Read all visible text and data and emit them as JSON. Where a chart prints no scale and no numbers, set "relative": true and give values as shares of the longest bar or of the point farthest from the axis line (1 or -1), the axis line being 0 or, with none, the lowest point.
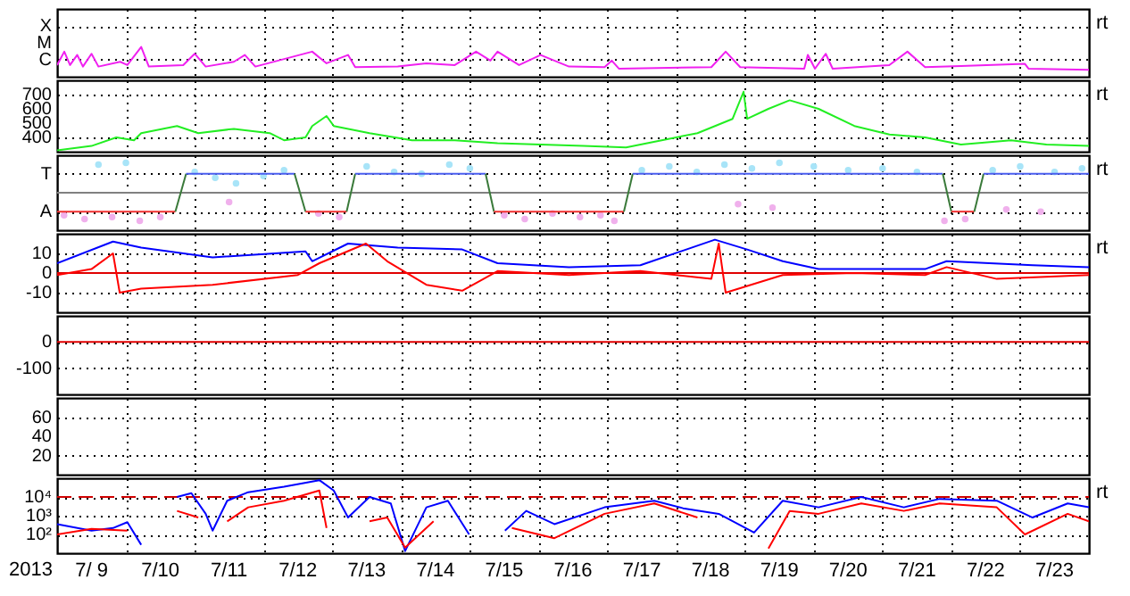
{
  "chart_data": [
    {
      "type": "line",
      "xlim": [
        "2013-07-09",
        "2013-07-24"
      ],
      "relative": true,
      "grid": true,
      "tick_labels": "y",
      "annotations": [
        "X",
        "M",
        "C",
        "rt"
      ],
      "xticks": [
        {
          "value": "2013-07-10",
          "label": null
        },
        {
          "value": "2013-07-11",
          "label": null
        },
        {
          "value": "2013-07-12",
          "label": null
        },
        {
          "value": "2013-07-13",
          "label": null
        },
        {
          "value": "2013-07-14",
          "label": null
        },
        {
          "value": "2013-07-15",
          "label": null
        },
        {
          "value": "2013-07-16",
          "label": null
        },
        {
          "value": "2013-07-17",
          "label": null
        },
        {
          "value": "2013-07-18",
          "label": null
        },
        {
          "value": "2013-07-19",
          "label": null
        },
        {
          "value": "2013-07-20",
          "label": null
        },
        {
          "value": "2013-07-21",
          "label": null
        },
        {
          "value": "2013-07-22",
          "label": null
        },
        {
          "value": "2013-07-23",
          "label": null
        }
      ],
      "series": [
        {
          "color": "#f020f0",
          "x": [
            "2013-07-09T00:00",
            "2013-07-09T02:30",
            "2013-07-09T04:30",
            "2013-07-09T07:00",
            "2013-07-09T09:00",
            "2013-07-09T12:00",
            "2013-07-09T14:25",
            "2013-07-09T22:00",
            "2013-07-10T00:30",
            "2013-07-10T05:20",
            "2013-07-10T08:00",
            "2013-07-10T20:00",
            "2013-07-11T00:00",
            "2013-07-11T03:50",
            "2013-07-11T13:40",
            "2013-07-11T17:30",
            "2013-07-11T21:10",
            "2013-07-12T17:00",
            "2013-07-12T22:00",
            "2013-07-13T05:30",
            "2013-07-13T08:00",
            "2013-07-13T22:50",
            "2013-07-14T08:50",
            "2013-07-14T18:45",
            "2013-07-15T02:10",
            "2013-07-15T07:10",
            "2013-07-15T09:40",
            "2013-07-15T17:10",
            "2013-07-16T00:40",
            "2013-07-16T10:35",
            "2013-07-16T23:00",
            "2013-07-17T01:30",
            "2013-07-17T04:00",
            "2013-07-18T12:15",
            "2013-07-18T17:15",
            "2013-07-18T22:20",
            "2013-07-19T20:40",
            "2013-07-19T21:55",
            "2013-07-20T00:25",
            "2013-07-20T04:10",
            "2013-07-20T06:35",
            "2013-07-21T02:20",
            "2013-07-21T08:40",
            "2013-07-21T14:50",
            "2013-07-22T03:20",
            "2013-07-23T01:40",
            "2013-07-23T02:55",
            "2013-07-24T00:00"
          ],
          "values": [
            0.39,
            0.84,
            0.39,
            0.73,
            0.34,
            0.77,
            0.34,
            0.5,
            0.39,
            1,
            0.34,
            0.39,
            0.77,
            0.34,
            0.5,
            0.73,
            0.34,
            0.84,
            0.45,
            0.73,
            0.32,
            0.34,
            0.45,
            0.39,
            0.84,
            0.54,
            0.84,
            0.39,
            0.73,
            0.34,
            0.32,
            0.54,
            0.27,
            0.32,
            0.84,
            0.32,
            0.27,
            0.73,
            0.27,
            0.77,
            0.27,
            0.39,
            0.84,
            0.32,
            0.36,
            0.43,
            0.27,
            0.23
          ]
        }
      ]
    },
    {
      "type": "line",
      "xlim": [
        "2013-07-09",
        "2013-07-24"
      ],
      "ylim": [
        300,
        800
      ],
      "yticks": [
        400,
        500,
        600,
        700
      ],
      "grid": true,
      "tick_labels": "y",
      "annotations": [
        "rt"
      ],
      "xticks": [
        {
          "value": "2013-07-10",
          "label": null
        },
        {
          "value": "2013-07-11",
          "label": null
        },
        {
          "value": "2013-07-12",
          "label": null
        },
        {
          "value": "2013-07-13",
          "label": null
        },
        {
          "value": "2013-07-14",
          "label": null
        },
        {
          "value": "2013-07-15",
          "label": null
        },
        {
          "value": "2013-07-16",
          "label": null
        },
        {
          "value": "2013-07-17",
          "label": null
        },
        {
          "value": "2013-07-18",
          "label": null
        },
        {
          "value": "2013-07-19",
          "label": null
        },
        {
          "value": "2013-07-20",
          "label": null
        },
        {
          "value": "2013-07-21",
          "label": null
        },
        {
          "value": "2013-07-22",
          "label": null
        },
        {
          "value": "2013-07-23",
          "label": null
        }
      ],
      "series": [
        {
          "color": "#22ee22",
          "x": [
            "2013-07-09T00:00",
            "2013-07-09T12:00",
            "2013-07-09T20:40",
            "2013-07-10T02:50",
            "2013-07-10T05:20",
            "2013-07-10T17:50",
            "2013-07-11T01:15",
            "2013-07-11T13:40",
            "2013-07-12T02:10",
            "2013-07-12T07:10",
            "2013-07-12T14:40",
            "2013-07-12T17:00",
            "2013-07-12T22:00",
            "2013-07-13T00:30",
            "2013-07-13T13:00",
            "2013-07-14T03:50",
            "2013-07-14T18:45",
            "2013-07-15T09:40",
            "2013-07-16T00:40",
            "2013-07-16T15:35",
            "2013-07-17T06:30",
            "2013-07-17T18:55",
            "2013-07-18T07:25",
            "2013-07-18T19:40",
            "2013-07-18T23:30",
            "2013-07-19T00:45",
            "2013-07-19T08:10",
            "2013-07-19T15:35",
            "2013-07-20T01:40",
            "2013-07-20T14:10",
            "2013-07-21T02:25",
            "2013-07-21T14:50",
            "2013-07-22T03:20",
            "2013-07-22T20:50",
            "2013-07-23T09:10",
            "2013-07-24T00:00"
          ],
          "values": [
            310,
            340,
            400,
            380,
            430,
            480,
            430,
            460,
            430,
            380,
            400,
            480,
            550,
            480,
            430,
            380,
            380,
            360,
            350,
            340,
            330,
            380,
            430,
            530,
            720,
            530,
            600,
            660,
            600,
            480,
            420,
            400,
            350,
            380,
            350,
            340
          ]
        }
      ]
    },
    {
      "type": "line",
      "xlim": [
        "2013-07-09",
        "2013-07-24"
      ],
      "relative": true,
      "grid": true,
      "tick_labels": "y",
      "annotations": [
        "T",
        "A",
        "rt"
      ],
      "xticks": [
        {
          "value": "2013-07-10",
          "label": null
        },
        {
          "value": "2013-07-11",
          "label": null
        },
        {
          "value": "2013-07-12",
          "label": null
        },
        {
          "value": "2013-07-13",
          "label": null
        },
        {
          "value": "2013-07-14",
          "label": null
        },
        {
          "value": "2013-07-15",
          "label": null
        },
        {
          "value": "2013-07-16",
          "label": null
        },
        {
          "value": "2013-07-17",
          "label": null
        },
        {
          "value": "2013-07-18",
          "label": null
        },
        {
          "value": "2013-07-19",
          "label": null
        },
        {
          "value": "2013-07-20",
          "label": null
        },
        {
          "value": "2013-07-21",
          "label": null
        },
        {
          "value": "2013-07-22",
          "label": null
        },
        {
          "value": "2013-07-23",
          "label": null
        }
      ],
      "ref_lines": [
        {
          "axis": "y",
          "value": 0,
          "color": "#808080"
        }
      ],
      "series": [
        {
          "type": "scatter",
          "color": "#a8e4f8",
          "x": [
            "2013-07-09T14:25",
            "2013-07-10T00:00",
            "2013-07-11T00:00",
            "2013-07-11T07:10",
            "2013-07-11T14:25",
            "2013-07-12T00:00",
            "2013-07-12T07:10",
            "2013-07-13T12:00",
            "2013-07-13T21:35",
            "2013-07-14T07:10",
            "2013-07-14T16:50",
            "2013-07-15T00:00",
            "2013-07-17T12:00",
            "2013-07-17T21:35",
            "2013-07-18T07:10",
            "2013-07-18T16:50",
            "2013-07-19T02:25",
            "2013-07-19T12:00",
            "2013-07-20T00:00",
            "2013-07-20T12:00",
            "2013-07-21T00:00",
            "2013-07-21T12:00",
            "2013-07-22T14:25",
            "2013-07-23T00:00",
            "2013-07-23T12:00",
            "2013-07-23T21:35"
          ],
          "values": [
            0.94,
            1,
            0.69,
            0.5,
            0.31,
            0.56,
            0.75,
            0.88,
            0.69,
            0.63,
            0.94,
            0.81,
            0.75,
            0.88,
            0.69,
            0.94,
            0.81,
            1,
            0.88,
            0.75,
            0.81,
            0.69,
            0.75,
            0.88,
            0.69,
            0.81
          ]
        },
        {
          "type": "scatter",
          "color": "#f0b0ec",
          "x": [
            "2013-07-09T02:25",
            "2013-07-09T09:35",
            "2013-07-09T19:10",
            "2013-07-10T04:50",
            "2013-07-10T12:00",
            "2013-07-11T12:00",
            "2013-07-12T19:10",
            "2013-07-13T02:25",
            "2013-07-15T12:00",
            "2013-07-15T19:10",
            "2013-07-16T04:50",
            "2013-07-16T14:25",
            "2013-07-16T21:35",
            "2013-07-17T02:25",
            "2013-07-18T21:35",
            "2013-07-19T09:35",
            "2013-07-21T21:35",
            "2013-07-22T04:50",
            "2013-07-22T19:10",
            "2013-07-23T07:10"
          ],
          "values": [
            -0.75,
            -0.88,
            -0.81,
            -0.94,
            -0.81,
            -0.31,
            -0.69,
            -0.81,
            -0.75,
            -0.88,
            -0.69,
            -0.81,
            -0.75,
            -0.94,
            -0.38,
            -0.5,
            -0.94,
            -0.88,
            -0.56,
            -0.63
          ]
        },
        {
          "color": "#f03030",
          "x": [
            "2013-07-09",
            "2013-07-10T17:15"
          ],
          "values": [
            -0.63,
            -0.63
          ]
        },
        {
          "color": "#3a7a3a",
          "x": [
            "2013-07-10T17:15",
            "2013-07-10T21:00"
          ],
          "values": [
            -0.63,
            0.63
          ]
        },
        {
          "color": "#4a5ef0",
          "x": [
            "2013-07-10T21:00",
            "2013-07-12T10:50"
          ],
          "values": [
            0.63,
            0.63
          ]
        },
        {
          "color": "#3a7a3a",
          "x": [
            "2013-07-12T10:50",
            "2013-07-12T14:40"
          ],
          "values": [
            0.63,
            -0.63
          ]
        },
        {
          "color": "#f03030",
          "x": [
            "2013-07-12T14:40",
            "2013-07-13T05:00"
          ],
          "values": [
            -0.63,
            -0.63
          ]
        },
        {
          "color": "#3a7a3a",
          "x": [
            "2013-07-13T05:00",
            "2013-07-13T08:00"
          ],
          "values": [
            -0.63,
            0.63
          ]
        },
        {
          "color": "#4a5ef0",
          "x": [
            "2013-07-13T08:00",
            "2013-07-15T05:30"
          ],
          "values": [
            0.63,
            0.63
          ]
        },
        {
          "color": "#3a7a3a",
          "x": [
            "2013-07-15T05:30",
            "2013-07-15T08:25"
          ],
          "values": [
            0.63,
            -0.63
          ]
        },
        {
          "color": "#f03030",
          "x": [
            "2013-07-15T08:25",
            "2013-07-17T05:45"
          ],
          "values": [
            -0.63,
            -0.63
          ]
        },
        {
          "color": "#3a7a3a",
          "x": [
            "2013-07-17T05:45",
            "2013-07-17T08:50"
          ],
          "values": [
            -0.63,
            0.63
          ]
        },
        {
          "color": "#4a5ef0",
          "x": [
            "2013-07-17T08:50",
            "2013-07-21T21:00"
          ],
          "values": [
            0.63,
            0.63
          ]
        },
        {
          "color": "#3a7a3a",
          "x": [
            "2013-07-21T21:00",
            "2013-07-22T00:00"
          ],
          "values": [
            0.63,
            -0.63
          ]
        },
        {
          "color": "#f03030",
          "x": [
            "2013-07-22T00:00",
            "2013-07-22T08:00"
          ],
          "values": [
            -0.63,
            -0.63
          ]
        },
        {
          "color": "#3a7a3a",
          "x": [
            "2013-07-22T08:00",
            "2013-07-22T11:15"
          ],
          "values": [
            -0.63,
            0.63
          ]
        },
        {
          "color": "#4a5ef0",
          "x": [
            "2013-07-22T11:15",
            "2013-07-24"
          ],
          "values": [
            0.63,
            0.63
          ]
        }
      ]
    },
    {
      "type": "line",
      "xlim": [
        "2013-07-09",
        "2013-07-24"
      ],
      "ylim": [
        -20,
        20
      ],
      "yticks": [
        10,
        0,
        -10
      ],
      "grid": true,
      "tick_labels": "y",
      "annotations": [
        "rt"
      ],
      "xticks": [
        {
          "value": "2013-07-10",
          "label": null
        },
        {
          "value": "2013-07-11",
          "label": null
        },
        {
          "value": "2013-07-12",
          "label": null
        },
        {
          "value": "2013-07-13",
          "label": null
        },
        {
          "value": "2013-07-14",
          "label": null
        },
        {
          "value": "2013-07-15",
          "label": null
        },
        {
          "value": "2013-07-16",
          "label": null
        },
        {
          "value": "2013-07-17",
          "label": null
        },
        {
          "value": "2013-07-18",
          "label": null
        },
        {
          "value": "2013-07-19",
          "label": null
        },
        {
          "value": "2013-07-20",
          "label": null
        },
        {
          "value": "2013-07-21",
          "label": null
        },
        {
          "value": "2013-07-22",
          "label": null
        },
        {
          "value": "2013-07-23",
          "label": null
        }
      ],
      "ref_lines": [
        {
          "axis": "y",
          "value": 0,
          "color": "#e00000"
        }
      ],
      "series": [
        {
          "color": "#0000ff",
          "x": [
            "2013-07-09T00:00",
            "2013-07-09T19:30",
            "2013-07-10T05:20",
            "2013-07-11T06:15",
            "2013-07-12T14:40",
            "2013-07-12T17:00",
            "2013-07-13T05:30",
            "2013-07-13T22:50",
            "2013-07-14T21:20",
            "2013-07-15T09:40",
            "2013-07-16T10:35",
            "2013-07-17T11:30",
            "2013-07-18T13:30",
            "2013-07-19T00:45",
            "2013-07-19T13:10",
            "2013-07-20T01:40",
            "2013-07-21T14:50",
            "2013-07-21T22:20",
            "2013-07-23T04:20",
            "2013-07-24T00:00"
          ],
          "values": [
            5,
            16,
            13,
            8,
            11,
            6,
            15,
            13,
            12,
            5,
            3,
            4,
            17,
            12,
            6,
            2,
            2,
            6,
            4,
            3
          ]
        },
        {
          "color": "#ff0000",
          "x": [
            "2013-07-09T00:00",
            "2013-07-09T12:00",
            "2013-07-09T19:30",
            "2013-07-09T21:50",
            "2013-07-10T05:20",
            "2013-07-11T06:15",
            "2013-07-12T12:00",
            "2013-07-12T19:30",
            "2013-07-13T11:45",
            "2013-07-13T19:10",
            "2013-07-14T08:50",
            "2013-07-14T21:20",
            "2013-07-15T09:40",
            "2013-07-16T10:35",
            "2013-07-17T11:30",
            "2013-07-18T12:15",
            "2013-07-18T14:50",
            "2013-07-18T17:15",
            "2013-07-19T13:10",
            "2013-07-20T14:10",
            "2013-07-21T14:50",
            "2013-07-21T22:20",
            "2013-07-22T15:50",
            "2013-07-24T00:00"
          ],
          "values": [
            -1,
            2,
            10,
            -10,
            -8,
            -6,
            -1,
            5,
            15,
            6,
            -6,
            -9,
            1,
            -1,
            1,
            -3,
            15,
            -10,
            -1,
            0,
            -1,
            3,
            -3,
            -1
          ]
        }
      ]
    },
    {
      "type": "line",
      "xlim": [
        "2013-07-09",
        "2013-07-24"
      ],
      "ylim": [
        -200,
        100
      ],
      "yticks": [
        0,
        -100
      ],
      "grid": true,
      "tick_labels": "y",
      "xticks": [
        {
          "value": "2013-07-10",
          "label": null
        },
        {
          "value": "2013-07-11",
          "label": null
        },
        {
          "value": "2013-07-12",
          "label": null
        },
        {
          "value": "2013-07-13",
          "label": null
        },
        {
          "value": "2013-07-14",
          "label": null
        },
        {
          "value": "2013-07-15",
          "label": null
        },
        {
          "value": "2013-07-16",
          "label": null
        },
        {
          "value": "2013-07-17",
          "label": null
        },
        {
          "value": "2013-07-18",
          "label": null
        },
        {
          "value": "2013-07-19",
          "label": null
        },
        {
          "value": "2013-07-20",
          "label": null
        },
        {
          "value": "2013-07-21",
          "label": null
        },
        {
          "value": "2013-07-22",
          "label": null
        },
        {
          "value": "2013-07-23",
          "label": null
        }
      ],
      "ref_lines": [
        {
          "axis": "y",
          "value": 0,
          "color": "#e00000"
        }
      ]
    },
    {
      "type": "line",
      "xlim": [
        "2013-07-09",
        "2013-07-24"
      ],
      "ylim": [
        0,
        80
      ],
      "yticks": [
        60,
        40,
        20
      ],
      "grid": true,
      "tick_labels": "y",
      "xticks": [
        {
          "value": "2013-07-10",
          "label": null
        },
        {
          "value": "2013-07-11",
          "label": null
        },
        {
          "value": "2013-07-12",
          "label": null
        },
        {
          "value": "2013-07-13",
          "label": null
        },
        {
          "value": "2013-07-14",
          "label": null
        },
        {
          "value": "2013-07-15",
          "label": null
        },
        {
          "value": "2013-07-16",
          "label": null
        },
        {
          "value": "2013-07-17",
          "label": null
        },
        {
          "value": "2013-07-18",
          "label": null
        },
        {
          "value": "2013-07-19",
          "label": null
        },
        {
          "value": "2013-07-20",
          "label": null
        },
        {
          "value": "2013-07-21",
          "label": null
        },
        {
          "value": "2013-07-22",
          "label": null
        },
        {
          "value": "2013-07-23",
          "label": null
        }
      ]
    },
    {
      "type": "line",
      "xlim": [
        "2013-07-09",
        "2013-07-24"
      ],
      "ylim": [
        10,
        100000
      ],
      "log": "y",
      "grid": true,
      "xlabel": "2013",
      "annotations": [
        "rt"
      ],
      "yticks": [
        {
          "value": 10000,
          "label": "10⁴"
        },
        {
          "value": 1000,
          "label": "10³"
        },
        {
          "value": 100,
          "label": "10²"
        }
      ],
      "xticks": [
        {
          "value": "2013-07-09T12:00",
          "label": "7/ 9"
        },
        {
          "value": "2013-07-10",
          "label": null
        },
        {
          "value": "2013-07-10T12:00",
          "label": "7/10"
        },
        {
          "value": "2013-07-11",
          "label": null
        },
        {
          "value": "2013-07-11T12:00",
          "label": "7/11"
        },
        {
          "value": "2013-07-12",
          "label": null
        },
        {
          "value": "2013-07-12T12:00",
          "label": "7/12"
        },
        {
          "value": "2013-07-13",
          "label": null
        },
        {
          "value": "2013-07-13T12:00",
          "label": "7/13"
        },
        {
          "value": "2013-07-14",
          "label": null
        },
        {
          "value": "2013-07-14T12:00",
          "label": "7/14"
        },
        {
          "value": "2013-07-15",
          "label": null
        },
        {
          "value": "2013-07-15T12:00",
          "label": "7/15"
        },
        {
          "value": "2013-07-16",
          "label": null
        },
        {
          "value": "2013-07-16T12:00",
          "label": "7/16"
        },
        {
          "value": "2013-07-17",
          "label": null
        },
        {
          "value": "2013-07-17T12:00",
          "label": "7/17"
        },
        {
          "value": "2013-07-18",
          "label": null
        },
        {
          "value": "2013-07-18T12:00",
          "label": "7/18"
        },
        {
          "value": "2013-07-19",
          "label": null
        },
        {
          "value": "2013-07-19T12:00",
          "label": "7/19"
        },
        {
          "value": "2013-07-20",
          "label": null
        },
        {
          "value": "2013-07-20T12:00",
          "label": "7/20"
        },
        {
          "value": "2013-07-21",
          "label": null
        },
        {
          "value": "2013-07-21T12:00",
          "label": "7/21"
        },
        {
          "value": "2013-07-22",
          "label": null
        },
        {
          "value": "2013-07-22T12:00",
          "label": "7/22"
        },
        {
          "value": "2013-07-23",
          "label": null
        },
        {
          "value": "2013-07-23T12:00",
          "label": "7/23"
        }
      ],
      "ref_lines": [
        {
          "axis": "y",
          "value": 10000,
          "color": "#d00000",
          "line_style": "dashed"
        }
      ],
      "series": [
        {
          "color": "#0000ff",
          "x": [
            "2013-07-09T00:00",
            "2013-07-09T12:00",
            "2013-07-09T19:30",
            "2013-07-10T00:30",
            "2013-07-10T05:20",
            "2013-07-10T11:30",
            "2013-07-10T17:50",
            "2013-07-10T22:50",
            "2013-07-11T03:50",
            "2013-07-11T06:15",
            "2013-07-11T11:20",
            "2013-07-11T18:40",
            "2013-07-12T07:10",
            "2013-07-12T19:30",
            "2013-07-13T00:30",
            "2013-07-13T05:30",
            "2013-07-13T13:00",
            "2013-07-13T20:25",
            "2013-07-14T01:25",
            "2013-07-14T08:50",
            "2013-07-14T16:20",
            "2013-07-14T23:45",
            "2013-07-15T07:10",
            "2013-07-15T12:15",
            "2013-07-15T19:40",
            "2013-07-16T05:30",
            "2013-07-16T23:00",
            "2013-07-17T16:20",
            "2013-07-18T02:25",
            "2013-07-18T14:50",
            "2013-07-19T03:10",
            "2013-07-19T13:10",
            "2013-07-20T01:40",
            "2013-07-20T16:35",
            "2013-07-21T07:25",
            "2013-07-21T19:55",
            "2013-07-22T15:50",
            "2013-07-23T04:20",
            "2013-07-23T16:35",
            "2013-07-24T00:00"
          ],
          "values": [
            355,
            160,
            220,
            450,
            28,
            null,
            10000,
            16000,
            1260,
            160,
            6300,
            18000,
            35000,
            79000,
            22000,
            800,
            10000,
            4500,
            13,
            2800,
            6300,
            100,
            null,
            160,
            1800,
            355,
            2800,
            6300,
            2500,
            1260,
            126,
            6300,
            2800,
            10000,
            2800,
            7900,
            6300,
            800,
            4500,
            2800
          ]
        },
        {
          "color": "#ff0000",
          "x": [
            "2013-07-09T00:00",
            "2013-07-09T12:00",
            "2013-07-10T00:30",
            "2013-07-10T11:30",
            "2013-07-10T17:50",
            "2013-07-11T01:15",
            "2013-07-11T05:00",
            "2013-07-11T11:20",
            "2013-07-11T18:40",
            "2013-07-12T07:10",
            "2013-07-12T19:30",
            "2013-07-12T22:00",
            "2013-07-13T05:30",
            "2013-07-13T13:00",
            "2013-07-13T19:10",
            "2013-07-14T01:25",
            "2013-07-14T11:20",
            "2013-07-14T18:45",
            "2013-07-15T09:40",
            "2013-07-15T14:40",
            "2013-07-16T05:30",
            "2013-07-16T23:00",
            "2013-07-17T16:20",
            "2013-07-18T07:25",
            "2013-07-18T22:20",
            "2013-07-19T08:10",
            "2013-07-19T15:35",
            "2013-07-20T01:40",
            "2013-07-20T16:35",
            "2013-07-21T07:25",
            "2013-07-21T19:55",
            "2013-07-22T15:50",
            "2013-07-23T01:40",
            "2013-07-23T16:35",
            "2013-07-24T00:00"
          ],
          "values": [
            100,
            200,
            160,
            null,
            1800,
            800,
            null,
            500,
            2800,
            6300,
            22000,
            220,
            null,
            500,
            800,
            20,
            500,
            null,
            null,
            220,
            63,
            1260,
            4500,
            800,
            null,
            18,
            1800,
            1260,
            4500,
            1800,
            4500,
            2800,
            100,
            1260,
            500
          ]
        }
      ]
    }
  ]
}
